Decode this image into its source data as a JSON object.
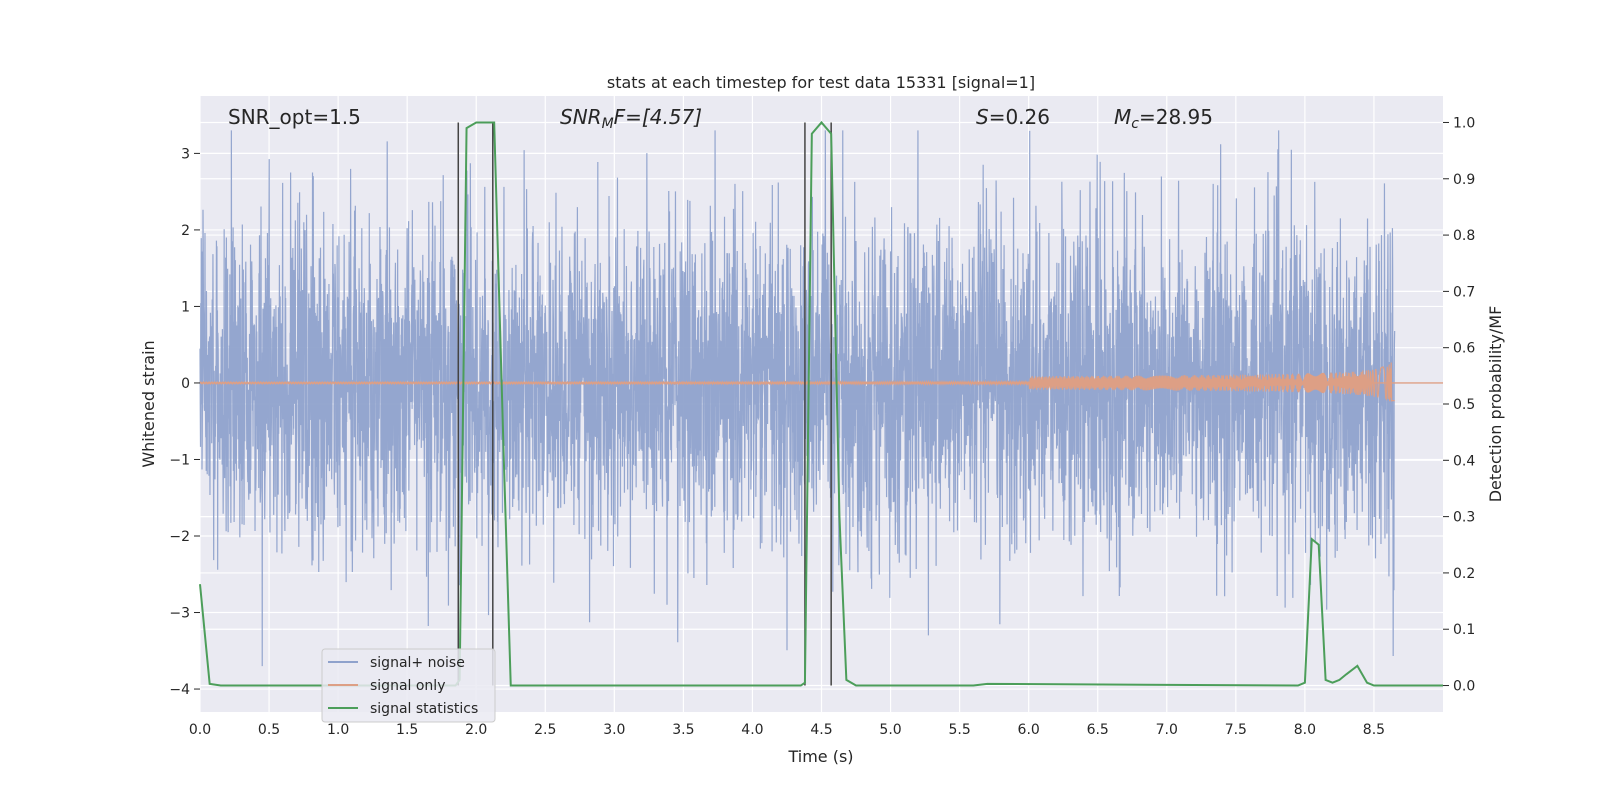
{
  "chart_data": {
    "type": "line",
    "title": "stats at each timestep for test data 15331 [signal=1]",
    "xlabel": "Time (s)",
    "ylabel": "Whitened strain",
    "y2label": "Detection probability/MF",
    "xlim": [
      0.0,
      9.0
    ],
    "ylim": [
      -4.3,
      3.75
    ],
    "y2lim": [
      -0.047,
      1.047
    ],
    "grid": true,
    "legend": "lower-left",
    "x_ticks": [
      0.0,
      0.5,
      1.0,
      1.5,
      2.0,
      2.5,
      3.0,
      3.5,
      4.0,
      4.5,
      5.0,
      5.5,
      6.0,
      6.5,
      7.0,
      7.5,
      8.0,
      8.5
    ],
    "x_tick_labels": [
      "0.0",
      "0.5",
      "1.0",
      "1.5",
      "2.0",
      "2.5",
      "3.0",
      "3.5",
      "4.0",
      "4.5",
      "5.0",
      "5.5",
      "6.0",
      "6.5",
      "7.0",
      "7.5",
      "8.0",
      "8.5"
    ],
    "y_ticks": [
      -4,
      -3,
      -2,
      -1,
      0,
      1,
      2,
      3
    ],
    "y_tick_labels": [
      "−4",
      "−3",
      "−2",
      "−1",
      "0",
      "1",
      "2",
      "3"
    ],
    "y2_ticks": [
      0.0,
      0.1,
      0.2,
      0.3,
      0.4,
      0.5,
      0.6,
      0.7,
      0.8,
      0.9,
      1.0
    ],
    "y2_tick_labels": [
      "0.0",
      "0.1",
      "0.2",
      "0.3",
      "0.4",
      "0.5",
      "0.6",
      "0.7",
      "0.8",
      "0.9",
      "1.0"
    ],
    "annotations": {
      "snr_opt": "SNR_opt=1.5",
      "snr_mf_main": "SNR",
      "snr_mf_sub": "M",
      "snr_mf_rest": "F=[4.57]",
      "s_main": "S",
      "s_rest": "=0.26",
      "mc_main": "M",
      "mc_sub": "c",
      "mc_rest": "=28.95"
    },
    "series": [
      {
        "name": "signal+ noise",
        "color": "#8fa2cc",
        "axis": "left",
        "noise_sigma": 1.0,
        "duration": 8.65
      },
      {
        "name": "signal only",
        "color": "#dd9f85",
        "axis": "left",
        "chirp_end": 8.65,
        "chirp_peak_amplitude": 0.3
      },
      {
        "name": "signal statistics",
        "color": "#4c9e5a",
        "axis": "right",
        "x": [
          0.0,
          0.07,
          0.15,
          1.85,
          1.88,
          1.93,
          2.0,
          2.13,
          2.2,
          2.25,
          4.35,
          4.38,
          4.43,
          4.5,
          4.57,
          4.63,
          4.68,
          4.75,
          5.6,
          5.7,
          7.95,
          8.0,
          8.05,
          8.1,
          8.15,
          8.2,
          8.25,
          8.3,
          8.38,
          8.45,
          8.5,
          9.0
        ],
        "values": [
          0.18,
          0.003,
          0.0,
          0.0,
          0.01,
          0.99,
          1.0,
          1.0,
          0.4,
          0.0,
          0.0,
          0.005,
          0.98,
          1.0,
          0.98,
          0.3,
          0.01,
          0.0,
          0.0,
          0.003,
          0.0,
          0.005,
          0.26,
          0.25,
          0.01,
          0.005,
          0.01,
          0.02,
          0.035,
          0.005,
          0.0,
          0.0
        ]
      }
    ],
    "vertical_lines": [
      1.87,
      2.12,
      4.38,
      4.57
    ]
  }
}
